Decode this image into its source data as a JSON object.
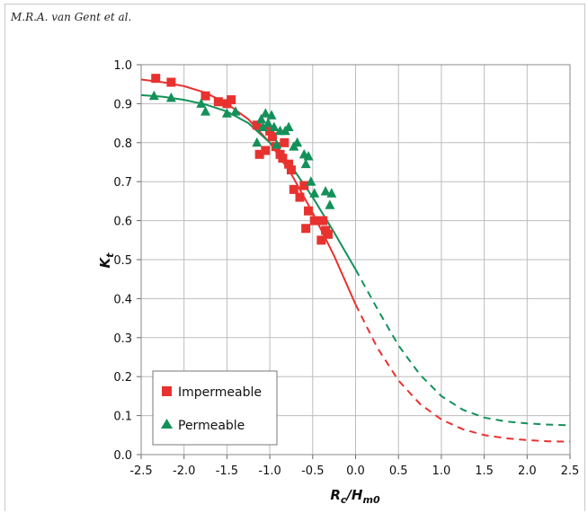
{
  "header": {
    "author": "M.R.A. van Gent et al."
  },
  "chart_data": {
    "type": "scatter",
    "title": "",
    "xlabel": {
      "main": "R",
      "sub1": "c",
      "sep": "/H",
      "sub2": "m0"
    },
    "ylabel": {
      "main": "K",
      "sub": "t"
    },
    "xlim": [
      -2.5,
      2.5
    ],
    "ylim": [
      0.0,
      1.0
    ],
    "xticks": [
      "-2.5",
      "-2.0",
      "-1.5",
      "-1.0",
      "-0.5",
      "0.0",
      "0.5",
      "1.0",
      "1.5",
      "2.0",
      "2.5"
    ],
    "yticks": [
      "0.0",
      "0.1",
      "0.2",
      "0.3",
      "0.4",
      "0.5",
      "0.6",
      "0.7",
      "0.8",
      "0.9",
      "1.0"
    ],
    "grid": true,
    "legend": {
      "placement": "bottom-left"
    },
    "colors": {
      "impermeable": "#e8322f",
      "permeable": "#14915a"
    },
    "series": [
      {
        "name": "Impermeable",
        "marker": "square",
        "points": [
          [
            -2.33,
            0.965
          ],
          [
            -2.15,
            0.955
          ],
          [
            -1.75,
            0.92
          ],
          [
            -1.6,
            0.905
          ],
          [
            -1.5,
            0.9
          ],
          [
            -1.45,
            0.91
          ],
          [
            -1.15,
            0.845
          ],
          [
            -1.12,
            0.77
          ],
          [
            -1.05,
            0.78
          ],
          [
            -1.0,
            0.83
          ],
          [
            -0.97,
            0.815
          ],
          [
            -0.93,
            0.79
          ],
          [
            -0.88,
            0.77
          ],
          [
            -0.85,
            0.76
          ],
          [
            -0.83,
            0.8
          ],
          [
            -0.78,
            0.745
          ],
          [
            -0.75,
            0.73
          ],
          [
            -0.72,
            0.68
          ],
          [
            -0.65,
            0.66
          ],
          [
            -0.6,
            0.69
          ],
          [
            -0.58,
            0.58
          ],
          [
            -0.55,
            0.625
          ],
          [
            -0.48,
            0.6
          ],
          [
            -0.4,
            0.55
          ],
          [
            -0.38,
            0.6
          ],
          [
            -0.35,
            0.575
          ],
          [
            -0.32,
            0.565
          ]
        ],
        "fit_solid": [
          [
            -2.5,
            0.962
          ],
          [
            -2.25,
            0.955
          ],
          [
            -2.0,
            0.945
          ],
          [
            -1.75,
            0.928
          ],
          [
            -1.5,
            0.9
          ],
          [
            -1.25,
            0.86
          ],
          [
            -1.0,
            0.8
          ],
          [
            -0.75,
            0.72
          ],
          [
            -0.5,
            0.62
          ],
          [
            -0.25,
            0.51
          ],
          [
            0.0,
            0.385
          ]
        ],
        "fit_dashed": [
          [
            0.0,
            0.385
          ],
          [
            0.25,
            0.275
          ],
          [
            0.5,
            0.19
          ],
          [
            0.75,
            0.13
          ],
          [
            1.0,
            0.09
          ],
          [
            1.25,
            0.065
          ],
          [
            1.5,
            0.05
          ],
          [
            1.75,
            0.042
          ],
          [
            2.0,
            0.037
          ],
          [
            2.25,
            0.034
          ],
          [
            2.5,
            0.033
          ]
        ]
      },
      {
        "name": "Permeable",
        "marker": "triangle",
        "points": [
          [
            -2.35,
            0.92
          ],
          [
            -2.15,
            0.915
          ],
          [
            -1.8,
            0.9
          ],
          [
            -1.75,
            0.88
          ],
          [
            -1.5,
            0.875
          ],
          [
            -1.4,
            0.88
          ],
          [
            -1.15,
            0.8
          ],
          [
            -1.1,
            0.86
          ],
          [
            -1.08,
            0.84
          ],
          [
            -1.05,
            0.875
          ],
          [
            -1.02,
            0.85
          ],
          [
            -0.98,
            0.87
          ],
          [
            -0.95,
            0.84
          ],
          [
            -0.92,
            0.795
          ],
          [
            -0.88,
            0.83
          ],
          [
            -0.82,
            0.83
          ],
          [
            -0.78,
            0.84
          ],
          [
            -0.72,
            0.79
          ],
          [
            -0.68,
            0.8
          ],
          [
            -0.6,
            0.77
          ],
          [
            -0.58,
            0.745
          ],
          [
            -0.55,
            0.765
          ],
          [
            -0.52,
            0.7
          ],
          [
            -0.48,
            0.67
          ],
          [
            -0.35,
            0.675
          ],
          [
            -0.3,
            0.64
          ],
          [
            -0.28,
            0.67
          ]
        ],
        "fit_solid": [
          [
            -2.5,
            0.922
          ],
          [
            -2.25,
            0.918
          ],
          [
            -2.0,
            0.91
          ],
          [
            -1.75,
            0.898
          ],
          [
            -1.5,
            0.88
          ],
          [
            -1.25,
            0.85
          ],
          [
            -1.0,
            0.8
          ],
          [
            -0.75,
            0.74
          ],
          [
            -0.5,
            0.66
          ],
          [
            -0.25,
            0.57
          ],
          [
            0.0,
            0.475
          ]
        ],
        "fit_dashed": [
          [
            0.0,
            0.475
          ],
          [
            0.25,
            0.375
          ],
          [
            0.5,
            0.28
          ],
          [
            0.75,
            0.205
          ],
          [
            1.0,
            0.15
          ],
          [
            1.25,
            0.115
          ],
          [
            1.5,
            0.095
          ],
          [
            1.75,
            0.085
          ],
          [
            2.0,
            0.08
          ],
          [
            2.25,
            0.077
          ],
          [
            2.5,
            0.075
          ]
        ]
      }
    ]
  }
}
